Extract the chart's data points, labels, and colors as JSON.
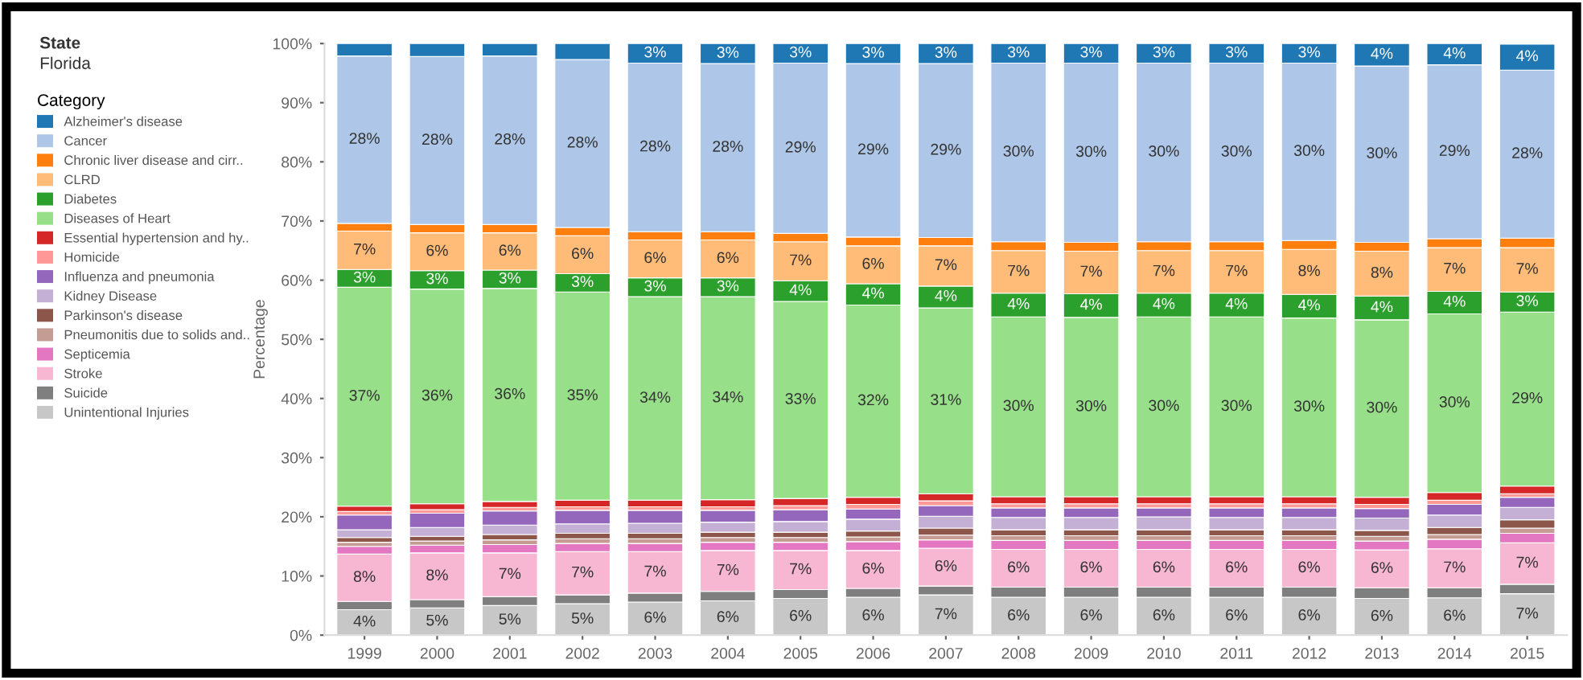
{
  "chart_data": {
    "type": "bar",
    "stacked": true,
    "title": "State",
    "subtitle": "Florida",
    "legend_title": "Category",
    "ylabel": "Percentage",
    "legend": "left",
    "grid": false,
    "categories": [
      "1999",
      "2000",
      "2001",
      "2002",
      "2003",
      "2004",
      "2005",
      "2006",
      "2007",
      "2008",
      "2009",
      "2010",
      "2011",
      "2012",
      "2013",
      "2014",
      "2015"
    ],
    "ylim": [
      0,
      100
    ],
    "yticks": [
      {
        "value": 0,
        "label": "0%"
      },
      {
        "value": 10,
        "label": "10%"
      },
      {
        "value": 20,
        "label": "20%"
      },
      {
        "value": 30,
        "label": "30%"
      },
      {
        "value": 40,
        "label": "40%"
      },
      {
        "value": 50,
        "label": "50%"
      },
      {
        "value": 60,
        "label": "60%"
      },
      {
        "value": 70,
        "label": "70%"
      },
      {
        "value": 80,
        "label": "80%"
      },
      {
        "value": 90,
        "label": "90%"
      },
      {
        "value": 100,
        "label": "100%"
      }
    ],
    "series": [
      {
        "name": "Unintentional Injuries",
        "color": "#c7c7c7",
        "values": [
          4.3,
          4.6,
          5.0,
          5.3,
          5.6,
          5.8,
          6.2,
          6.4,
          6.8,
          6.4,
          6.4,
          6.4,
          6.4,
          6.4,
          6.2,
          6.3,
          7.0
        ],
        "value_labels": [
          "4%",
          "5%",
          "5%",
          "5%",
          "6%",
          "6%",
          "6%",
          "6%",
          "7%",
          "6%",
          "6%",
          "6%",
          "6%",
          "6%",
          "6%",
          "6%",
          "7%"
        ]
      },
      {
        "name": "Suicide",
        "color": "#7f7f7f",
        "values": [
          1.4,
          1.4,
          1.5,
          1.5,
          1.5,
          1.6,
          1.5,
          1.5,
          1.5,
          1.7,
          1.7,
          1.7,
          1.7,
          1.7,
          1.8,
          1.7,
          1.6
        ]
      },
      {
        "name": "Stroke",
        "color": "#f7b6d2",
        "values": [
          8.0,
          7.9,
          7.4,
          7.3,
          7.0,
          6.9,
          6.6,
          6.4,
          6.4,
          6.4,
          6.4,
          6.4,
          6.4,
          6.4,
          6.4,
          6.6,
          7.0
        ],
        "value_labels": [
          "8%",
          "8%",
          "7%",
          "7%",
          "7%",
          "7%",
          "7%",
          "6%",
          "6%",
          "6%",
          "6%",
          "6%",
          "6%",
          "6%",
          "6%",
          "7%",
          "7%"
        ]
      },
      {
        "name": "Septicemia",
        "color": "#e377c2",
        "values": [
          1.3,
          1.3,
          1.4,
          1.4,
          1.4,
          1.4,
          1.4,
          1.5,
          1.4,
          1.5,
          1.5,
          1.5,
          1.5,
          1.5,
          1.5,
          1.6,
          1.6
        ]
      },
      {
        "name": "Pneumonitis due to solids and..",
        "color": "#c49c94",
        "values": [
          0.7,
          0.7,
          0.8,
          0.8,
          0.8,
          0.8,
          0.8,
          0.8,
          0.8,
          0.8,
          0.8,
          0.8,
          0.8,
          0.8,
          0.8,
          0.8,
          0.9
        ]
      },
      {
        "name": "Parkinson's disease",
        "color": "#8c564b",
        "values": [
          0.8,
          0.8,
          0.9,
          0.9,
          0.9,
          0.9,
          0.9,
          1.0,
          1.2,
          1.0,
          1.0,
          1.0,
          1.0,
          1.0,
          1.0,
          1.2,
          1.4
        ]
      },
      {
        "name": "Kidney Disease",
        "color": "#c5b0d5",
        "values": [
          1.3,
          1.5,
          1.6,
          1.6,
          1.7,
          1.7,
          1.8,
          2.0,
          2.0,
          2.1,
          2.1,
          2.2,
          2.1,
          2.1,
          2.1,
          2.1,
          2.1
        ]
      },
      {
        "name": "Influenza and pneumonia",
        "color": "#9467bd",
        "values": [
          2.5,
          2.4,
          2.4,
          2.3,
          2.2,
          2.0,
          2.0,
          1.7,
          1.8,
          1.6,
          1.6,
          1.5,
          1.6,
          1.6,
          1.6,
          1.8,
          1.7
        ]
      },
      {
        "name": "Homicide",
        "color": "#ff9896",
        "values": [
          0.6,
          0.6,
          0.6,
          0.6,
          0.6,
          0.6,
          0.7,
          0.8,
          0.8,
          0.7,
          0.7,
          0.7,
          0.7,
          0.7,
          0.7,
          0.7,
          0.6
        ]
      },
      {
        "name": "Essential hypertension and hy..",
        "color": "#d62728",
        "values": [
          0.9,
          1.0,
          1.0,
          1.1,
          1.1,
          1.2,
          1.2,
          1.2,
          1.2,
          1.2,
          1.2,
          1.2,
          1.2,
          1.2,
          1.2,
          1.3,
          1.3
        ]
      },
      {
        "name": "Diseases of Heart",
        "color": "#98df8a",
        "values": [
          37.0,
          36.3,
          36.0,
          35.2,
          34.4,
          34.3,
          33.3,
          32.5,
          31.4,
          30.4,
          30.3,
          30.4,
          30.4,
          30.2,
          30.0,
          30.2,
          29.4
        ],
        "value_labels": [
          "37%",
          "36%",
          "36%",
          "35%",
          "34%",
          "34%",
          "33%",
          "32%",
          "31%",
          "30%",
          "30%",
          "30%",
          "30%",
          "30%",
          "30%",
          "30%",
          "29%"
        ]
      },
      {
        "name": "Diabetes",
        "color": "#2ca02c",
        "values": [
          3.0,
          3.1,
          3.1,
          3.1,
          3.2,
          3.2,
          3.5,
          3.6,
          3.7,
          4.0,
          4.0,
          4.0,
          4.0,
          4.0,
          4.0,
          3.8,
          3.4
        ],
        "value_labels": [
          "3%",
          "3%",
          "3%",
          "3%",
          "3%",
          "3%",
          "4%",
          "4%",
          "4%",
          "4%",
          "4%",
          "4%",
          "4%",
          "4%",
          "4%",
          "4%",
          "3%"
        ]
      },
      {
        "name": "CLRD",
        "color": "#ffbb78",
        "values": [
          6.5,
          6.4,
          6.3,
          6.4,
          6.4,
          6.4,
          6.6,
          6.4,
          6.8,
          7.2,
          7.2,
          7.2,
          7.2,
          7.6,
          7.6,
          7.4,
          7.5
        ],
        "value_labels": [
          "7%",
          "6%",
          "6%",
          "6%",
          "6%",
          "6%",
          "7%",
          "6%",
          "7%",
          "7%",
          "7%",
          "7%",
          "7%",
          "8%",
          "8%",
          "7%",
          "7%"
        ]
      },
      {
        "name": "Chronic liver disease and cirr..",
        "color": "#ff7f0e",
        "values": [
          1.3,
          1.4,
          1.4,
          1.4,
          1.4,
          1.4,
          1.4,
          1.5,
          1.4,
          1.5,
          1.5,
          1.5,
          1.5,
          1.5,
          1.5,
          1.5,
          1.6
        ]
      },
      {
        "name": "Cancer",
        "color": "#aec7e8",
        "values": [
          28.3,
          28.4,
          28.5,
          28.4,
          28.5,
          28.4,
          28.8,
          29.3,
          29.4,
          30.2,
          30.3,
          30.2,
          30.2,
          30.0,
          29.8,
          29.4,
          28.4
        ],
        "value_labels": [
          "28%",
          "28%",
          "28%",
          "28%",
          "28%",
          "28%",
          "29%",
          "29%",
          "29%",
          "30%",
          "30%",
          "30%",
          "30%",
          "30%",
          "30%",
          "29%",
          "28%"
        ]
      },
      {
        "name": "Alzheimer's disease",
        "color": "#1f77b4",
        "values": [
          2.1,
          2.2,
          2.1,
          2.7,
          3.3,
          3.4,
          3.3,
          3.4,
          3.4,
          3.3,
          3.3,
          3.3,
          3.3,
          3.3,
          3.8,
          3.6,
          4.4
        ],
        "value_labels": [
          null,
          null,
          null,
          null,
          "3%",
          "3%",
          "3%",
          "3%",
          "3%",
          "3%",
          "3%",
          "3%",
          "3%",
          "3%",
          "4%",
          "4%",
          "4%"
        ]
      }
    ]
  }
}
